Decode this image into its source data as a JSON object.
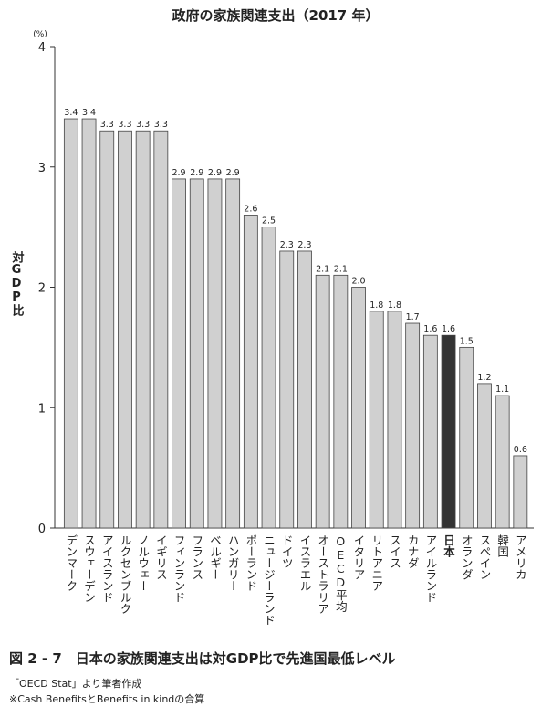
{
  "chart_data": {
    "type": "bar",
    "title": "政府の家族関連支出（2017 年）",
    "unit": "(%)",
    "y_label": "対GDP比",
    "categories": [
      "デンマーク",
      "スウェーデン",
      "アイスランド",
      "ルクセンブルク",
      "ノルウェー",
      "イギリス",
      "フィンランド",
      "フランス",
      "ベルギー",
      "ハンガリー",
      "ポーランド",
      "ニュージーランド",
      "ドイツ",
      "イスラエル",
      "オーストラリア",
      "OECD平均",
      "イタリア",
      "リトアニア",
      "スイス",
      "カナダ",
      "アイルランド",
      "日本",
      "オランダ",
      "スペイン",
      "韓国",
      "アメリカ"
    ],
    "values": [
      3.4,
      3.4,
      3.3,
      3.3,
      3.3,
      3.3,
      2.9,
      2.9,
      2.9,
      2.9,
      2.6,
      2.5,
      2.3,
      2.3,
      2.1,
      2.1,
      2.0,
      1.8,
      1.8,
      1.7,
      1.6,
      1.6,
      1.5,
      1.2,
      1.1,
      0.6
    ],
    "value_labels": [
      "3.4",
      "3.4",
      "3.3",
      "3.3",
      "3.3",
      "3.3",
      "2.9",
      "2.9",
      "2.9",
      "2.9",
      "2.6",
      "2.5",
      "2.3",
      "2.3",
      "2.1",
      "2.1",
      "2.0",
      "1.8",
      "1.8",
      "1.7",
      "1.6",
      "1.6",
      "1.5",
      "1.2",
      "1.1",
      "0.6"
    ],
    "colors": [
      "#d0d0d0",
      "#d0d0d0",
      "#d0d0d0",
      "#d0d0d0",
      "#d0d0d0",
      "#d0d0d0",
      "#d0d0d0",
      "#d0d0d0",
      "#d0d0d0",
      "#d0d0d0",
      "#d0d0d0",
      "#d0d0d0",
      "#d0d0d0",
      "#d0d0d0",
      "#d0d0d0",
      "#d0d0d0",
      "#d0d0d0",
      "#d0d0d0",
      "#d0d0d0",
      "#d0d0d0",
      "#d0d0d0",
      "#333333",
      "#d0d0d0",
      "#d0d0d0",
      "#d0d0d0",
      "#d0d0d0"
    ],
    "ylim": [
      0,
      4
    ],
    "yticks": [
      0,
      1,
      2,
      3,
      4
    ],
    "grid": false,
    "caption": "図 2 - 7　日本の家族関連支出は対GDP比で先進国最低レベル",
    "notes": [
      "「OECD Stat」より筆者作成",
      "※Cash BenefitsとBenefits in kindの合算"
    ]
  }
}
